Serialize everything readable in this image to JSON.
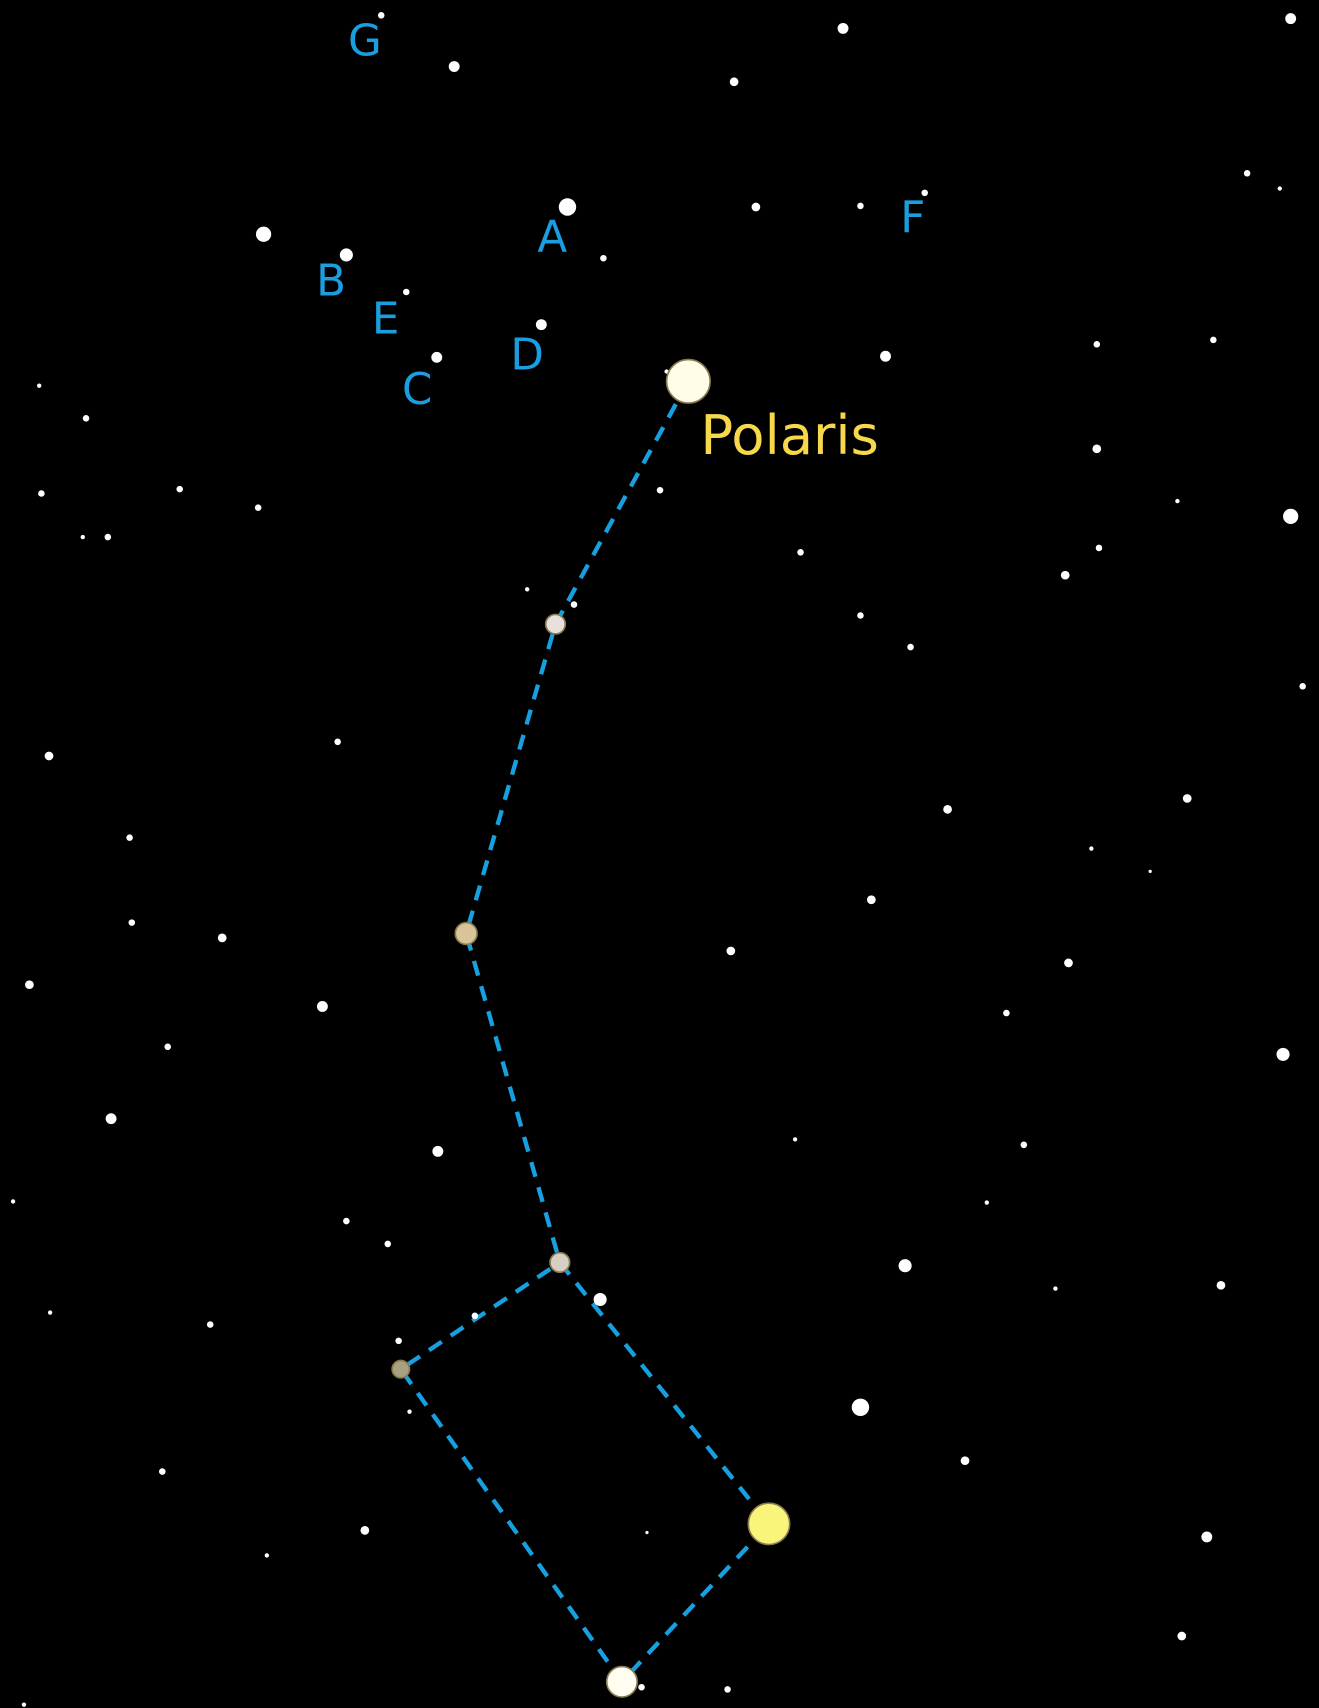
{
  "labels": [
    "G",
    "A",
    "B",
    "E",
    "C",
    "D",
    "F"
  ],
  "star_name": "Polaris"
}
